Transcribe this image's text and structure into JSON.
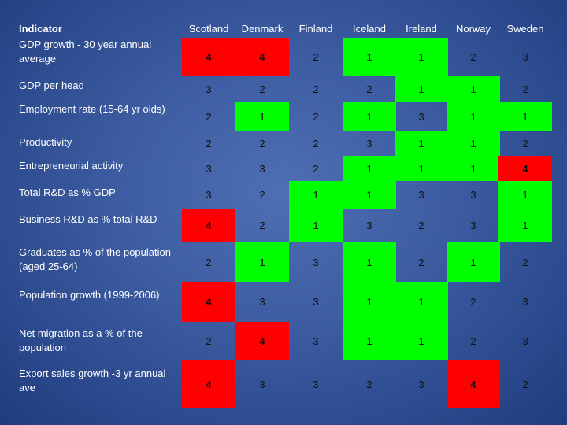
{
  "table": {
    "header_title": "Indicator",
    "countries": [
      "Scotland",
      "Denmark",
      "Finland",
      "Iceland",
      "Ireland",
      "Norway",
      "Sweden"
    ],
    "rows": [
      {
        "indicator": "GDP growth - 30 year annual average",
        "scores": [
          "4",
          "4",
          "2",
          "1",
          "1",
          "2",
          "3"
        ]
      },
      {
        "indicator": "GDP per head",
        "scores": [
          "3",
          "2",
          "2",
          "2",
          "1",
          "1",
          "2"
        ]
      },
      {
        "indicator": "Employment rate (15-64 yr olds)",
        "scores": [
          "2",
          "1",
          "2",
          "1",
          "3",
          "1",
          "1"
        ]
      },
      {
        "indicator": "Productivity",
        "scores": [
          "2",
          "2",
          "2",
          "3",
          "1",
          "1",
          "2"
        ]
      },
      {
        "indicator": "Entrepreneurial activity",
        "scores": [
          "3",
          "3",
          "2",
          "1",
          "1",
          "1",
          "4"
        ]
      },
      {
        "indicator": "Total R&D as % GDP",
        "scores": [
          "3",
          "2",
          "1",
          "1",
          "3",
          "3",
          "1"
        ]
      },
      {
        "indicator": "Business R&D as % total R&D",
        "scores": [
          "4",
          "2",
          "1",
          "3",
          "2",
          "3",
          "1"
        ]
      },
      {
        "indicator": "Graduates as % of the population (aged 25-64)",
        "scores": [
          "2",
          "1",
          "3",
          "1",
          "2",
          "1",
          "2"
        ]
      },
      {
        "indicator": "Population growth (1999-2006)",
        "scores": [
          "4",
          "3",
          "3",
          "1",
          "1",
          "2",
          "3"
        ]
      },
      {
        "indicator": "Net migration as a % of the population",
        "scores": [
          "2",
          "4",
          "3",
          "1",
          "1",
          "2",
          "3"
        ]
      },
      {
        "indicator": "Export sales growth -3 yr annual ave",
        "scores": [
          "4",
          "3",
          "3",
          "2",
          "3",
          "4",
          "2"
        ]
      }
    ]
  },
  "colors": {
    "background": "#3b5a9f",
    "score_1": "#00ff00",
    "score_4": "#ff0000"
  }
}
